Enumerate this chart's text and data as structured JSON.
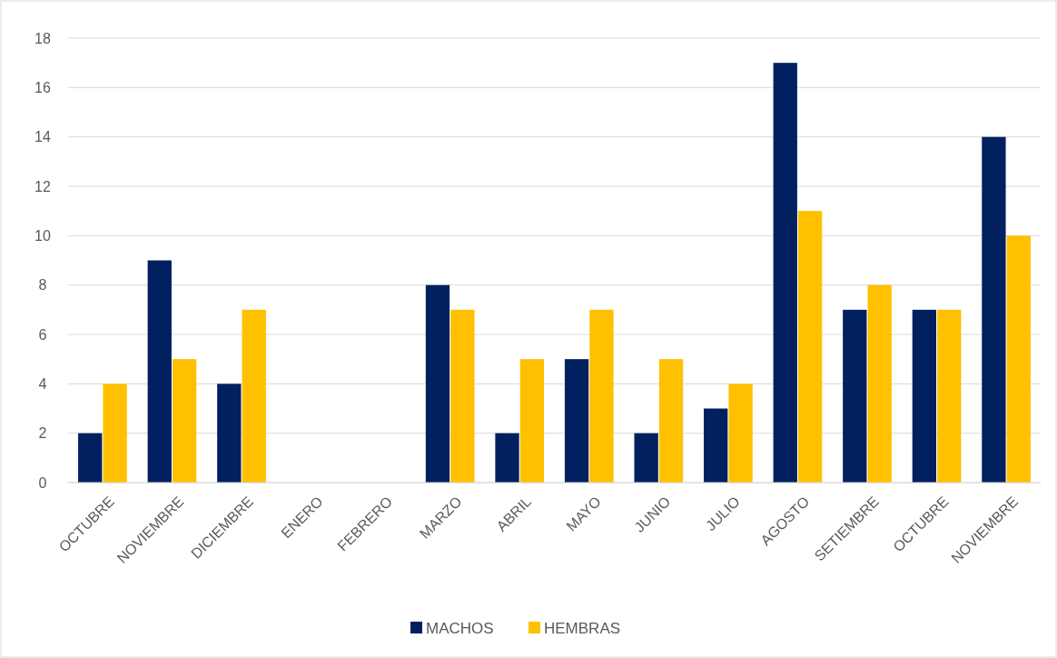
{
  "chart_data": {
    "type": "bar",
    "categories": [
      "OCTUBRE",
      "NOVIEMBRE",
      "DICIEMBRE",
      "ENERO",
      "FEBRERO",
      "MARZO",
      "ABRIL",
      "MAYO",
      "JUNIO",
      "JULIO",
      "AGOSTO",
      "SETIEMBRE",
      "OCTUBRE",
      "NOVIEMBRE"
    ],
    "series": [
      {
        "name": "MACHOS",
        "color": "#002060",
        "values": [
          2,
          9,
          4,
          null,
          null,
          8,
          2,
          5,
          2,
          3,
          17,
          7,
          7,
          14
        ]
      },
      {
        "name": "HEMBRAS",
        "color": "#ffc000",
        "values": [
          4,
          5,
          7,
          null,
          null,
          7,
          5,
          7,
          5,
          4,
          11,
          8,
          7,
          10
        ]
      }
    ],
    "ylim": [
      0,
      18
    ],
    "yticks": [
      0,
      2,
      4,
      6,
      8,
      10,
      12,
      14,
      16,
      18
    ],
    "grid": "y",
    "legend": "bottom"
  }
}
